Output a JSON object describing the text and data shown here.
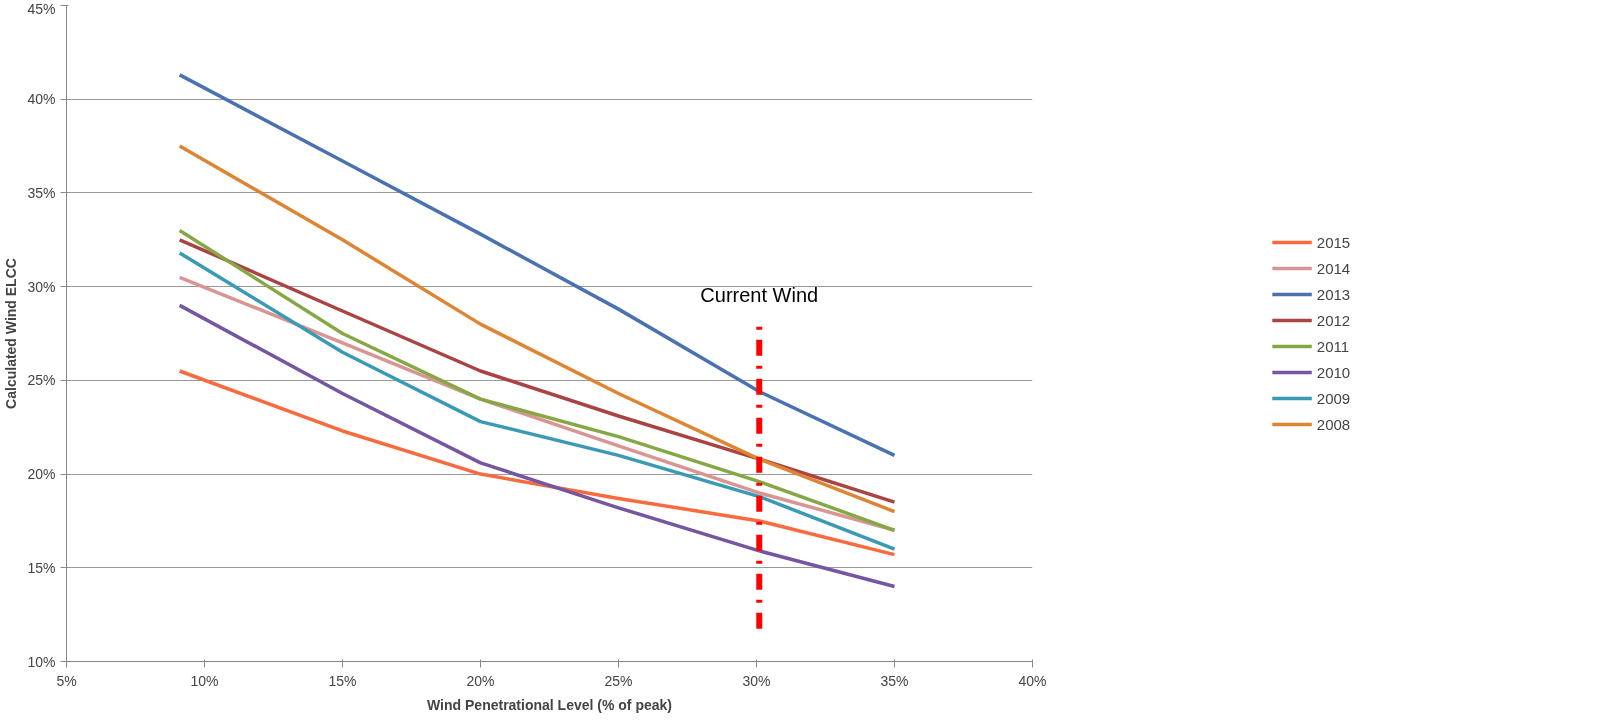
{
  "chart_data": {
    "type": "line",
    "xlabel": "Wind Penetrational Level (% of peak)",
    "ylabel": "Calculated Wind ELCC",
    "x": [
      9.1,
      15,
      20,
      25,
      30.1,
      35
    ],
    "series": [
      {
        "name": "2015",
        "color": "#f96a3e",
        "values": [
          25.5,
          22.3,
          20,
          18.7,
          17.5,
          15.7
        ]
      },
      {
        "name": "2014",
        "color": "#d99594",
        "values": [
          30.5,
          27,
          24,
          21.5,
          19,
          17
        ]
      },
      {
        "name": "2013",
        "color": "#4a72b0",
        "values": [
          41.3,
          36.7,
          32.8,
          28.8,
          24.4,
          21
        ]
      },
      {
        "name": "2012",
        "color": "#a94442",
        "values": [
          32.5,
          28.7,
          25.5,
          23.1,
          20.8,
          18.5
        ]
      },
      {
        "name": "2011",
        "color": "#86a844",
        "values": [
          33,
          27.5,
          24,
          22,
          19.6,
          17
        ]
      },
      {
        "name": "2010",
        "color": "#7556a0",
        "values": [
          29,
          24.3,
          20.6,
          18.2,
          15.9,
          14
        ]
      },
      {
        "name": "2009",
        "color": "#3a9ab5",
        "values": [
          31.8,
          26.5,
          22.8,
          21,
          18.8,
          16
        ]
      },
      {
        "name": "2008",
        "color": "#de8433",
        "values": [
          37.5,
          32.5,
          28,
          24.3,
          20.8,
          18
        ]
      }
    ],
    "xlim": [
      5,
      40
    ],
    "ylim": [
      10,
      45
    ],
    "xticks": [
      {
        "value": 5,
        "label": "5%"
      },
      {
        "value": 10,
        "label": "10%"
      },
      {
        "value": 15,
        "label": "15%"
      },
      {
        "value": 20,
        "label": "20%"
      },
      {
        "value": 25,
        "label": "25%"
      },
      {
        "value": 30,
        "label": "30%"
      },
      {
        "value": 35,
        "label": "35%"
      },
      {
        "value": 40,
        "label": "40%"
      }
    ],
    "yticks": [
      {
        "value": 10,
        "label": "10%"
      },
      {
        "value": 15,
        "label": "15%"
      },
      {
        "value": 20,
        "label": "20%"
      },
      {
        "value": 25,
        "label": "25%"
      },
      {
        "value": 30,
        "label": "30%"
      },
      {
        "value": 35,
        "label": "35%"
      },
      {
        "value": 40,
        "label": "40%"
      },
      {
        "value": 45,
        "label": "45%"
      }
    ],
    "ref_lines": [
      {
        "axis": "x",
        "value": 30.1,
        "label": "Current Wind",
        "color": "#ff0000",
        "line_style": "dashed"
      }
    ],
    "grid": "y",
    "legend": "right",
    "marker": "none",
    "line_style": "solid"
  }
}
